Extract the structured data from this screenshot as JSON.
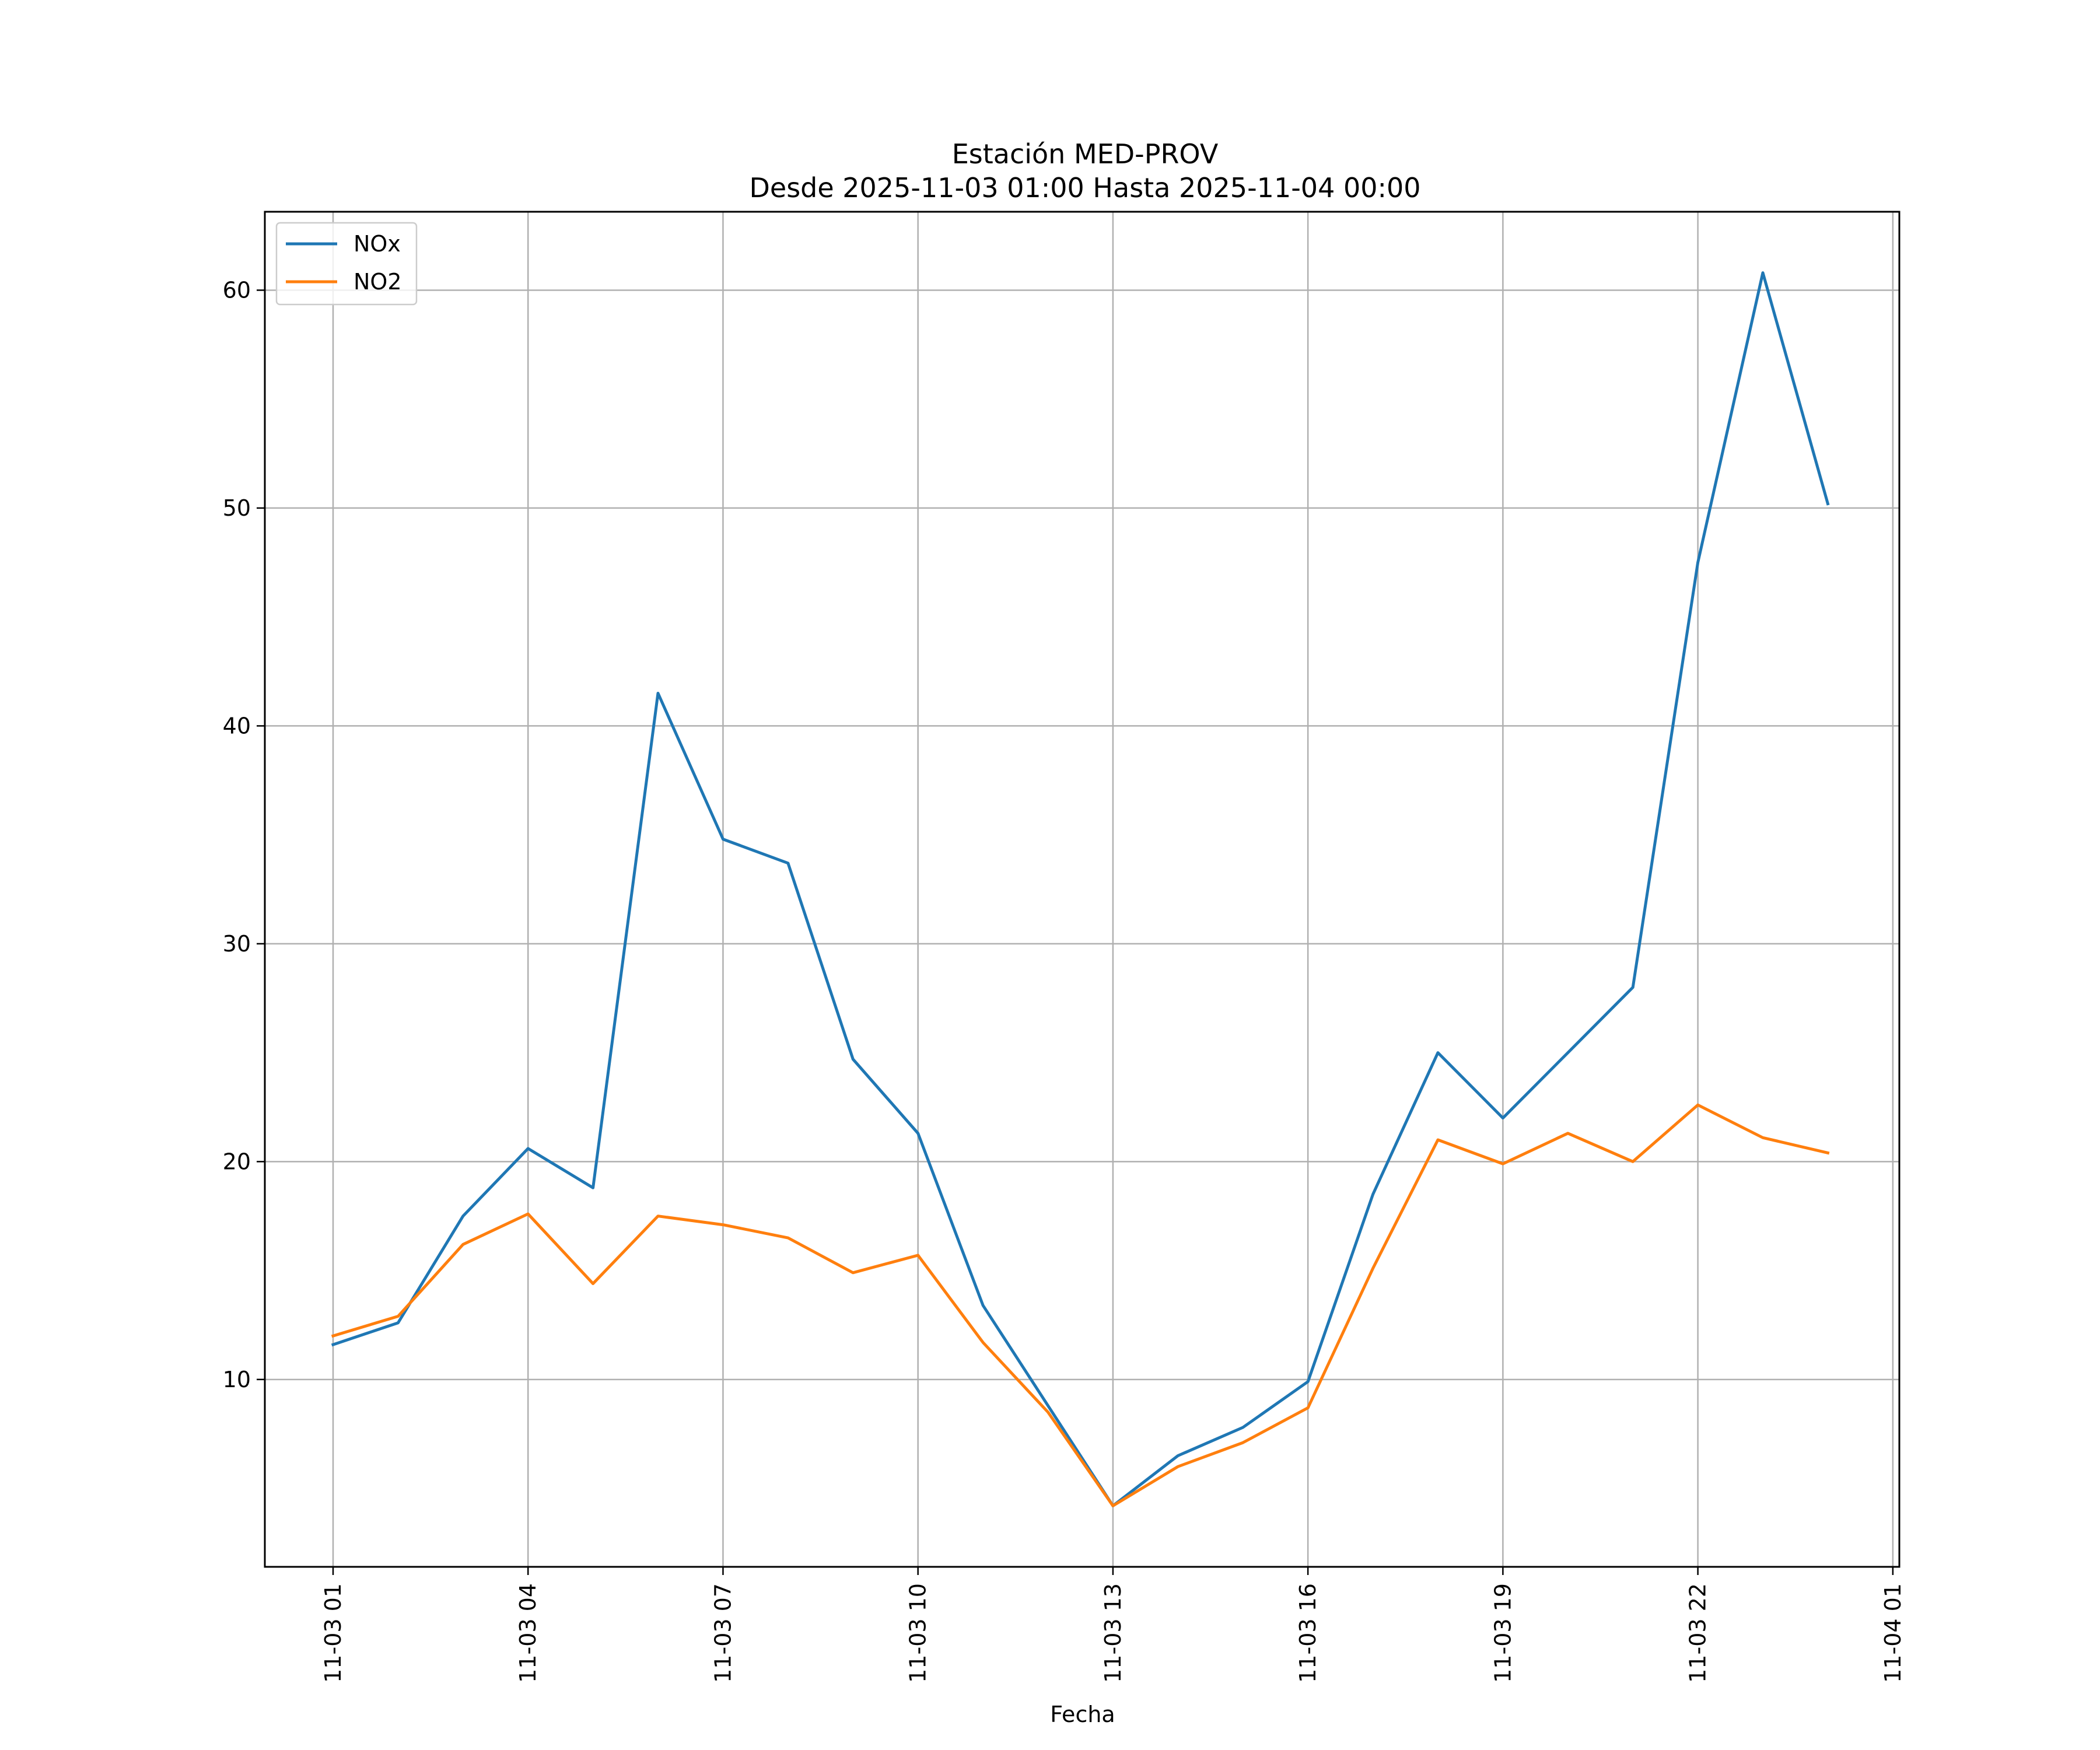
{
  "chart_data": {
    "type": "line",
    "title_line1": "Estación MED-PROV",
    "title_line2": "Desde 2025-11-03 01:00 Hasta 2025-11-04 00:00",
    "xlabel": "Fecha",
    "ylabel": "",
    "x_hours": [
      1,
      2,
      3,
      4,
      5,
      6,
      7,
      8,
      9,
      10,
      11,
      12,
      13,
      14,
      15,
      16,
      17,
      18,
      19,
      20,
      21,
      22,
      23,
      24
    ],
    "x_ticks": [
      {
        "hour": 1,
        "label": "11-03 01"
      },
      {
        "hour": 4,
        "label": "11-03 04"
      },
      {
        "hour": 7,
        "label": "11-03 07"
      },
      {
        "hour": 10,
        "label": "11-03 10"
      },
      {
        "hour": 13,
        "label": "11-03 13"
      },
      {
        "hour": 16,
        "label": "11-03 16"
      },
      {
        "hour": 19,
        "label": "11-03 19"
      },
      {
        "hour": 22,
        "label": "11-03 22"
      },
      {
        "hour": 25,
        "label": "11-04 01"
      }
    ],
    "xlim": [
      -0.05,
      25.1
    ],
    "y_ticks": [
      10,
      20,
      30,
      40,
      50,
      60
    ],
    "ylim": [
      1.4,
      63.6
    ],
    "grid": true,
    "legend_position": "upper-left",
    "series": [
      {
        "name": "NOx",
        "color": "#1f77b4",
        "values": [
          11.6,
          12.6,
          17.5,
          20.6,
          18.8,
          41.5,
          34.8,
          33.7,
          24.7,
          21.3,
          13.4,
          8.8,
          4.2,
          6.5,
          7.8,
          9.9,
          18.5,
          25.0,
          22.0,
          25.0,
          28.0,
          47.5,
          60.8,
          50.2
        ]
      },
      {
        "name": "NO2",
        "color": "#ff7f0e",
        "values": [
          12.0,
          12.9,
          16.2,
          17.6,
          14.4,
          17.5,
          17.1,
          16.5,
          14.9,
          15.7,
          11.7,
          8.5,
          4.2,
          6.0,
          7.1,
          8.7,
          15.1,
          21.0,
          19.9,
          21.3,
          20.0,
          22.6,
          21.1,
          20.4
        ]
      }
    ]
  }
}
